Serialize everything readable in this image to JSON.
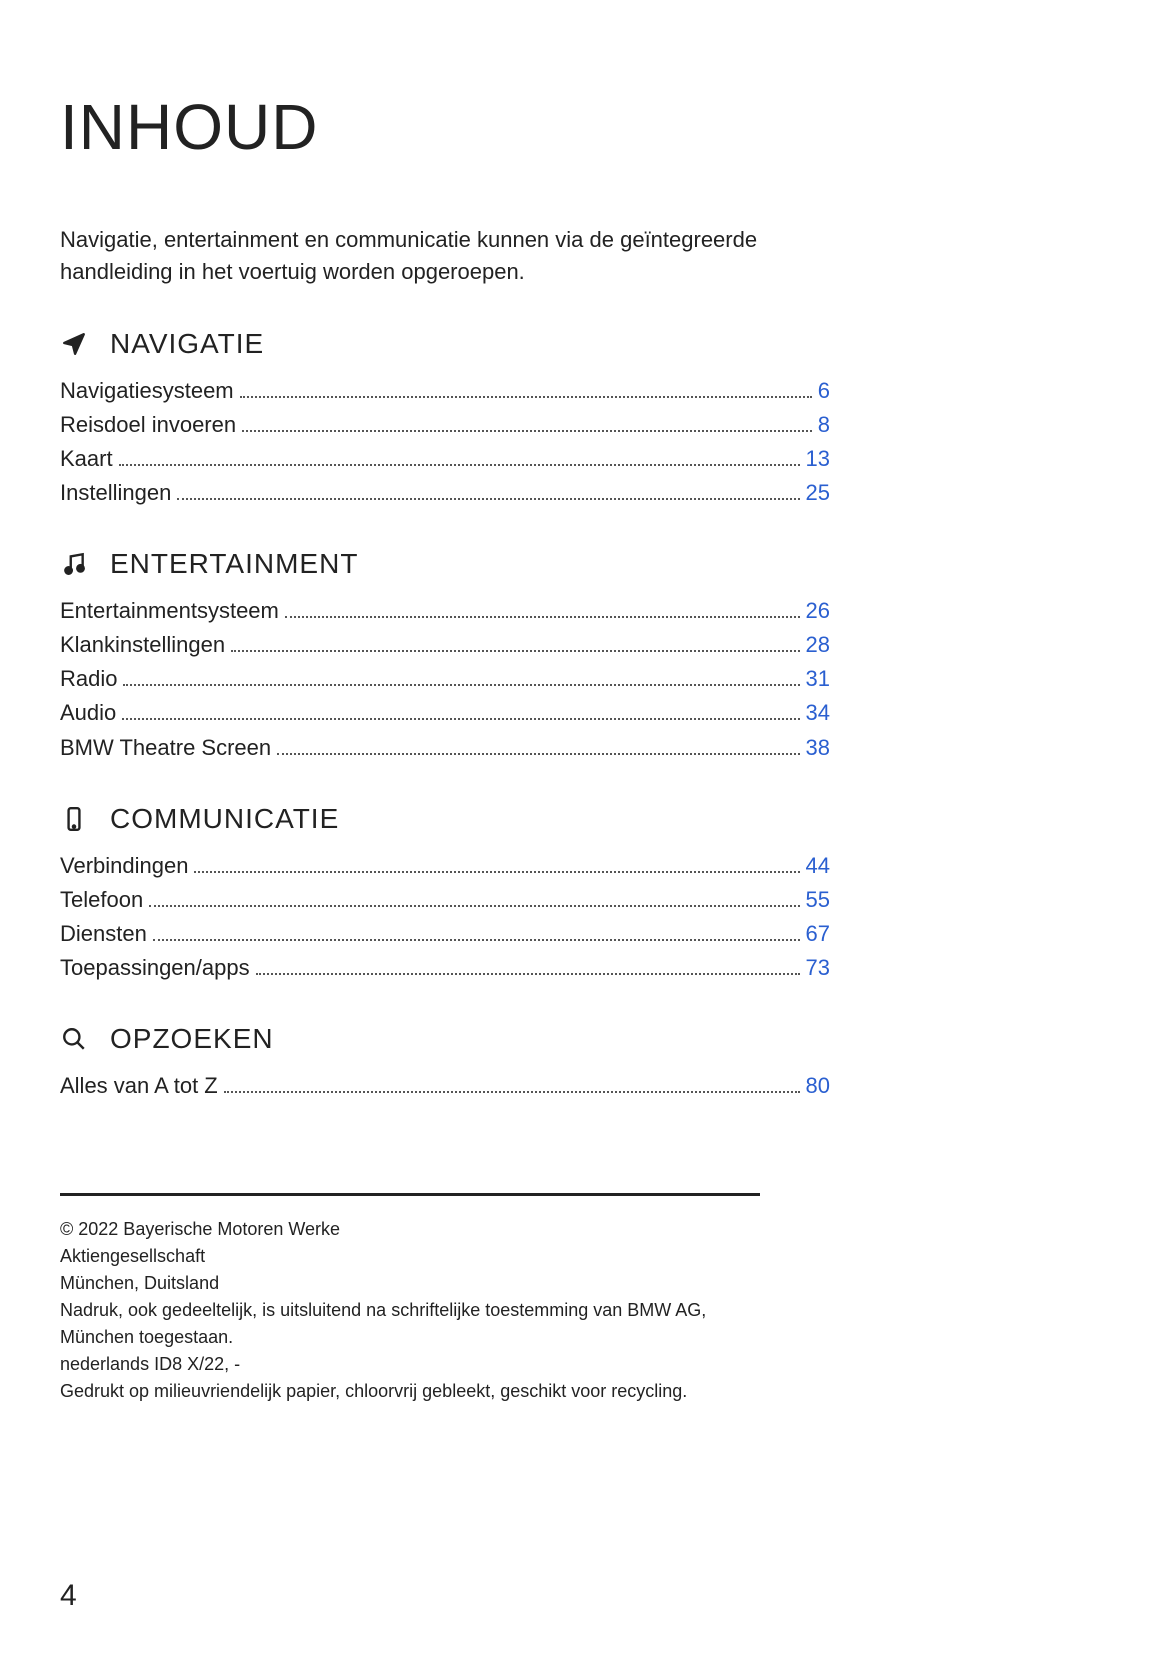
{
  "colors": {
    "text": "#222222",
    "link": "#2a5fd0",
    "background": "#ffffff",
    "dots": "#555555"
  },
  "typography": {
    "title_fontsize": 64,
    "section_fontsize": 28,
    "body_fontsize": 22,
    "footer_fontsize": 18,
    "pagenum_fontsize": 30
  },
  "title": "INHOUD",
  "intro": "Navigatie, entertainment en communicatie kunnen via de geïntegreerde handleiding in het voertuig worden opgeroepen.",
  "sections": [
    {
      "icon": "navigation-arrow",
      "title": "NAVIGATIE",
      "entries": [
        {
          "label": "Navigatiesysteem",
          "page": "6"
        },
        {
          "label": "Reisdoel invoeren",
          "page": "8"
        },
        {
          "label": "Kaart",
          "page": "13"
        },
        {
          "label": "Instellingen",
          "page": "25"
        }
      ]
    },
    {
      "icon": "music-note",
      "title": "ENTERTAINMENT",
      "entries": [
        {
          "label": "Entertainmentsysteem",
          "page": "26"
        },
        {
          "label": "Klankinstellingen",
          "page": "28"
        },
        {
          "label": "Radio",
          "page": "31"
        },
        {
          "label": "Audio",
          "page": "34"
        },
        {
          "label": "BMW Theatre Screen",
          "page": "38"
        }
      ]
    },
    {
      "icon": "phone",
      "title": "COMMUNICATIE",
      "entries": [
        {
          "label": "Verbindingen",
          "page": "44"
        },
        {
          "label": "Telefoon",
          "page": "55"
        },
        {
          "label": "Diensten",
          "page": "67"
        },
        {
          "label": "Toepassingen/apps",
          "page": "73"
        }
      ]
    },
    {
      "icon": "search",
      "title": "OPZOEKEN",
      "entries": [
        {
          "label": "Alles van A tot Z",
          "page": "80"
        }
      ]
    }
  ],
  "footer_lines": [
    "© 2022 Bayerische Motoren Werke",
    "Aktiengesellschaft",
    "München, Duitsland",
    "Nadruk, ook gedeeltelijk, is uitsluitend na schriftelijke toestemming van BMW AG,",
    "München toegestaan.",
    "nederlands ID8 X/22, -",
    "Gedrukt op milieuvriendelijk papier, chloorvrij gebleekt, geschikt voor recycling."
  ],
  "page_number": "4"
}
